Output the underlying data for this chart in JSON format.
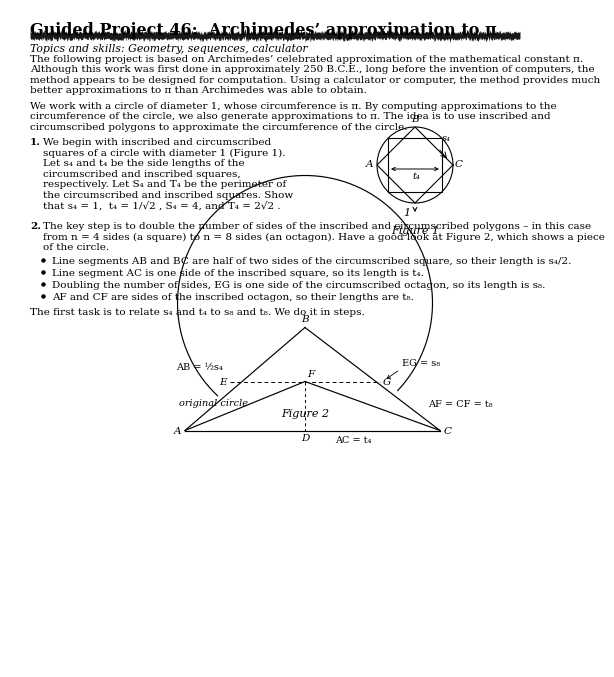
{
  "title": "Guided Project 46:  Archimedes’ approximation to π",
  "subtitle": "Topics and skills: Geometry, sequences, calculator",
  "bg_color": "#ffffff",
  "text_color": "#000000",
  "para1_lines": [
    "The following project is based on Archimedes’ celebrated approximation of the mathematical constant π.",
    "Although this work was first done in approximately 250 B.C.E., long before the invention of computers, the",
    "method appears to be designed for computation. Using a calculator or computer, the method provides much",
    "better approximations to π than Archimedes was able to obtain."
  ],
  "para2_lines": [
    "We work with a circle of diameter 1, whose circumference is π. By computing approximations to the",
    "circumference of the circle, we also generate approximations to π. The idea is to use inscribed and",
    "circumscribed polygons to approximate the circumference of the circle."
  ],
  "item1_lines": [
    "We begin with inscribed and circumscribed",
    "squares of a circle with diameter 1 (Figure 1).",
    "Let s₄ and t₄ be the side lengths of the",
    "circumscribed and inscribed squares,",
    "respectively. Let S₄ and T₄ be the perimeter of",
    "the circumscribed and inscribed squares. Show",
    "that s₄ = 1,  t₄ = 1/√2 , S₄ = 4, and T₄ = 2√2 ."
  ],
  "item2_lines": [
    "The key step is to double the number of sides of the inscribed and circumscribed polygons – in this case",
    "from n = 4 sides (a square) to n = 8 sides (an octagon). Have a good look at Figure 2, which shows a piece",
    "of the circle."
  ],
  "bullets": [
    "Line segments AB and BC are half of two sides of the circumscribed square, so their length is s₄/2.",
    "Line segment AC is one side of the inscribed square, so its length is t₄.",
    "Doubling the number of sides, EG is one side of the circumscribed octagon, so its length is s₈.",
    "AF and CF are sides of the inscribed octagon, so their lengths are t₈."
  ],
  "para3": "The first task is to relate s₄ and t₄ to s₈ and t₈. We do it in steps.",
  "title_fontsize": 11.5,
  "subtitle_fontsize": 7.8,
  "body_fontsize": 7.5,
  "fig_label_fontsize": 8.0
}
